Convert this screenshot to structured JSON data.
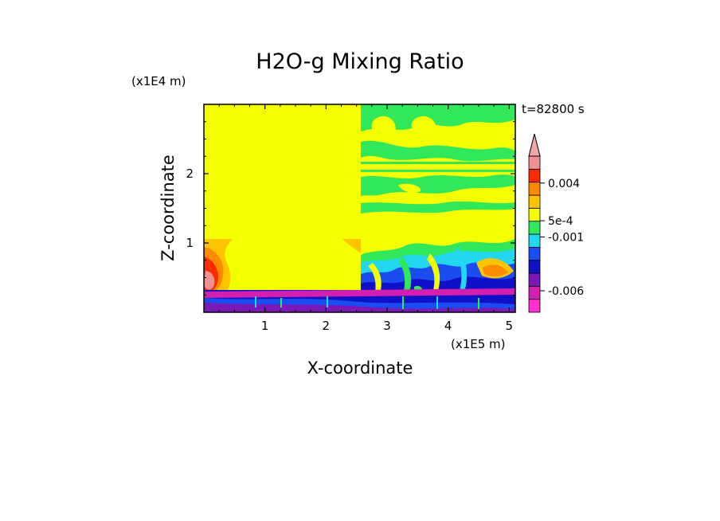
{
  "chart_data": {
    "type": "heatmap",
    "title": "H2O-g Mixing Ratio",
    "xlabel": "X-coordinate",
    "ylabel": "Z-coordinate",
    "x_unit": "(x1E5 m)",
    "y_unit": "(x1E4 m)",
    "time_label": "t=82800 s",
    "xlim": [
      0,
      5.1
    ],
    "ylim": [
      0,
      3.0
    ],
    "x_ticks": [
      "1",
      "2",
      "3",
      "4",
      "5"
    ],
    "y_ticks": [
      "1",
      "2"
    ],
    "colorbar": {
      "tick_labels": [
        "0.004",
        "5e-4",
        "-0.001",
        "-0.006"
      ],
      "tick_values": [
        0.004,
        0.0005,
        -0.001,
        -0.006
      ],
      "colors": [
        "#ff2fd0",
        "#d21fb0",
        "#7a18b8",
        "#1010c8",
        "#1a4cf0",
        "#22d8f0",
        "#30e85a",
        "#f4ff00",
        "#ffc400",
        "#ff8a00",
        "#ff2a00",
        "#f09090",
        "#f0a8a8"
      ],
      "extend": "max"
    },
    "regions": [
      {
        "x": [
          0,
          2.55
        ],
        "z": [
          0.3,
          3.0
        ],
        "value": "background",
        "color": "#f4ff00"
      },
      {
        "x": [
          2.55,
          5.1
        ],
        "z": [
          0.6,
          3.0
        ],
        "value": "banded",
        "color": "#30e85a"
      },
      {
        "x": [
          0,
          0.5
        ],
        "z": [
          0.3,
          1.0
        ],
        "value": "positive",
        "color": "#ff2a00"
      },
      {
        "x": [
          0,
          5.1
        ],
        "z": [
          0,
          0.3
        ],
        "value": "negative",
        "color": "#1010c8"
      }
    ]
  }
}
